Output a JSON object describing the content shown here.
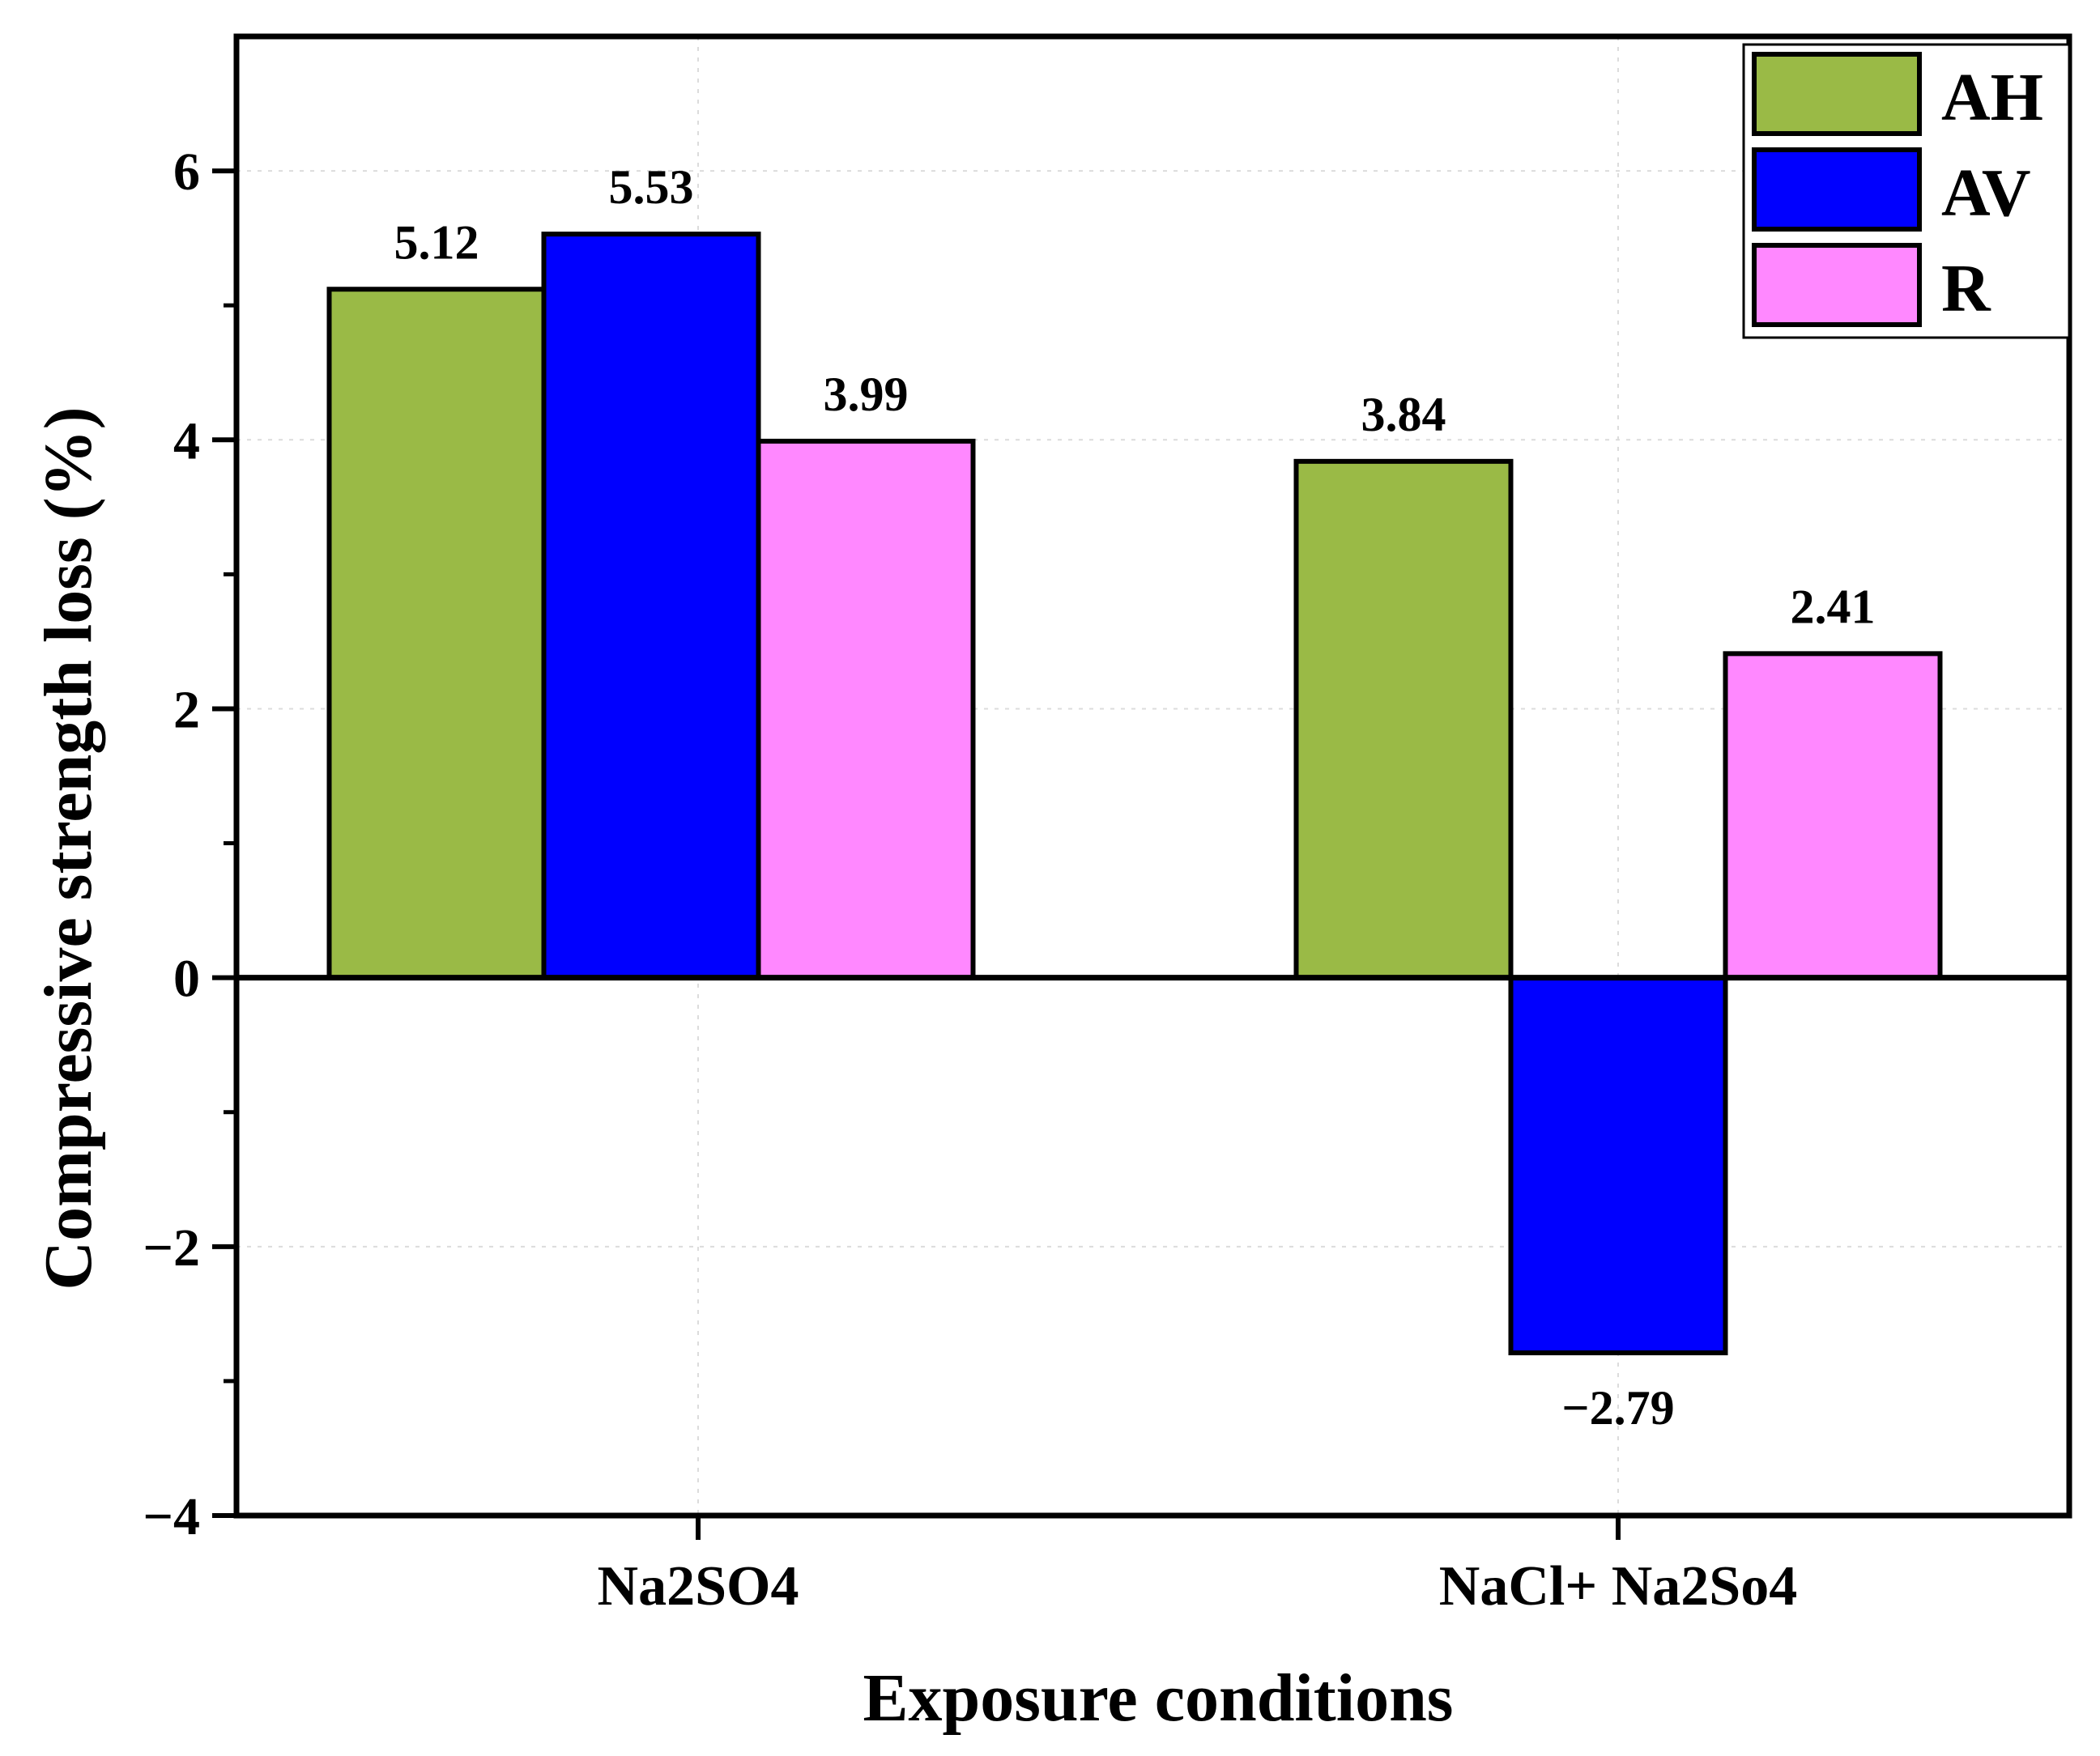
{
  "chart_data": {
    "type": "bar",
    "title": "",
    "xlabel": "Exposure conditions",
    "ylabel": "Compressive strength loss (%)",
    "categories": [
      "Na2SO4",
      "NaCl+ Na2So4"
    ],
    "series": [
      {
        "name": "AH",
        "color": "#9aba46",
        "values": [
          5.12,
          3.84
        ]
      },
      {
        "name": "AV",
        "color": "#0000ff",
        "values": [
          5.53,
          -2.79
        ]
      },
      {
        "name": "R",
        "color": "#ff88ff",
        "values": [
          3.99,
          2.41
        ]
      }
    ],
    "data_labels": [
      [
        "5.12",
        "3.84"
      ],
      [
        "5.53",
        "−2.79"
      ],
      [
        "3.99",
        "2.41"
      ]
    ],
    "ylim": [
      -4,
      7
    ],
    "y_ticks": [
      -4,
      -2,
      0,
      2,
      4,
      6
    ],
    "y_tick_labels": [
      "−4",
      "−2",
      "0",
      "2",
      "4",
      "6"
    ],
    "grid": true,
    "legend_position": "top-right"
  }
}
